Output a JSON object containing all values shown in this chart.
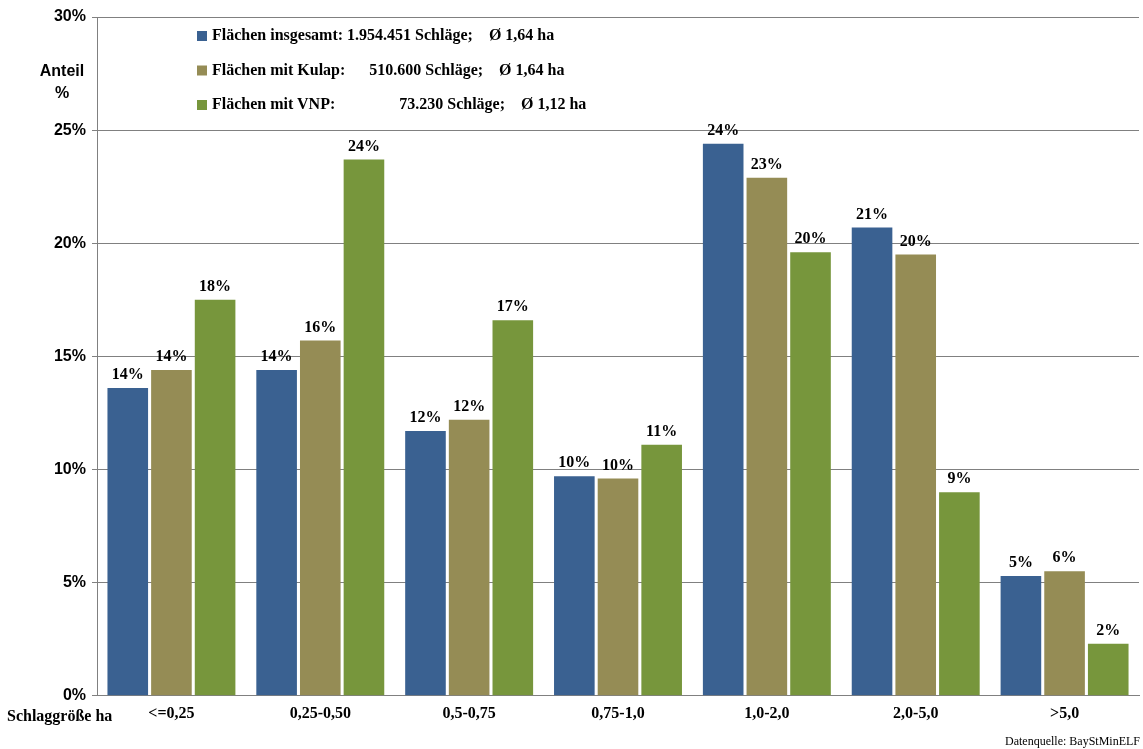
{
  "chart_data": {
    "type": "bar",
    "ylabel": "Anteil\n%",
    "xlabel": "Schlaggröße ha",
    "categories": [
      "<=0,25",
      "0,25-0,50",
      "0,5-0,75",
      "0,75-1,0",
      "1,0-2,0",
      "2,0-5,0",
      ">5,0"
    ],
    "series": [
      {
        "name": "Flächen insgesamt: 1.954.451 Schläge;  Ø 1,64 ha",
        "color": "#3a6191",
        "values": [
          13.6,
          14.4,
          11.7,
          9.7,
          24.4,
          20.7,
          5.3
        ],
        "value_labels": [
          "14%",
          "14%",
          "12%",
          "10%",
          "24%",
          "21%",
          "5%"
        ]
      },
      {
        "name": "Flächen mit Kulap:   510.600 Schläge;  Ø 1,64 ha",
        "color": "#958c55",
        "values": [
          14.4,
          15.7,
          12.2,
          9.6,
          22.9,
          19.5,
          5.5
        ],
        "value_labels": [
          "14%",
          "16%",
          "12%",
          "10%",
          "23%",
          "20%",
          "6%"
        ]
      },
      {
        "name": "Flächen mit VNP:        73.230 Schläge;  Ø 1,12 ha",
        "color": "#77963c",
        "values": [
          17.5,
          23.7,
          16.6,
          11.1,
          19.6,
          9.0,
          2.3
        ],
        "value_labels": [
          "18%",
          "24%",
          "17%",
          "11%",
          "20%",
          "9%",
          "2%"
        ]
      }
    ],
    "ylim": [
      0,
      30
    ],
    "yticks": [
      {
        "value": 0,
        "label": "0%"
      },
      {
        "value": 5,
        "label": "5%"
      },
      {
        "value": 10,
        "label": "10%"
      },
      {
        "value": 15,
        "label": "15%"
      },
      {
        "value": 20,
        "label": "20%"
      },
      {
        "value": 25,
        "label": "25%"
      },
      {
        "value": 30,
        "label": "30%"
      }
    ],
    "grid": "y",
    "legend": "top left",
    "annotations": [
      "Datenquelle: BayStMinELF"
    ]
  }
}
